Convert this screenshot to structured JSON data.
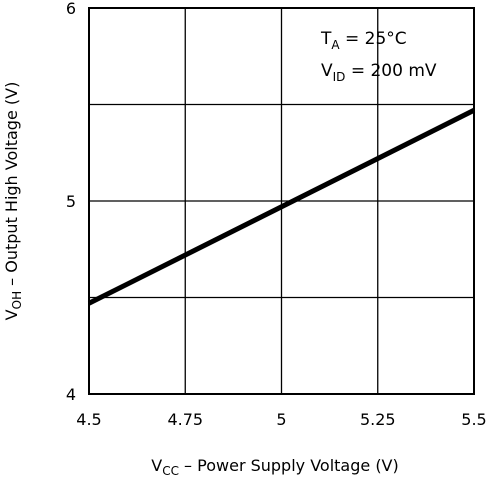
{
  "chart_data": {
    "type": "line",
    "x_axis": {
      "label_main": "V",
      "label_sub": "CC",
      "label_rest": " – Power Supply Voltage (V)",
      "lim": [
        4.5,
        5.5
      ],
      "ticks": [
        4.5,
        4.75,
        5,
        5.25,
        5.5
      ],
      "tick_labels": [
        "4.5",
        "4.75",
        "5",
        "5.25",
        "5.5"
      ]
    },
    "y_axis": {
      "label_main": "V",
      "label_sub": "OH",
      "label_rest": " – Output High Voltage (V)",
      "lim": [
        4,
        6
      ],
      "ticks": [
        4,
        4.5,
        5,
        5.5,
        6
      ],
      "tick_labels": [
        "4",
        "",
        "5",
        "",
        "6"
      ]
    },
    "grid": true,
    "series": [
      {
        "x": [
          4.5,
          5.5
        ],
        "y": [
          4.47,
          5.47
        ],
        "color": "#000000"
      }
    ],
    "annotations": {
      "line1_main": "T",
      "line1_sub": "A",
      "line1_rest": " = 25°C",
      "line2_main": "V",
      "line2_sub": "ID",
      "line2_rest": " = 200 mV",
      "position": "top-right"
    }
  }
}
